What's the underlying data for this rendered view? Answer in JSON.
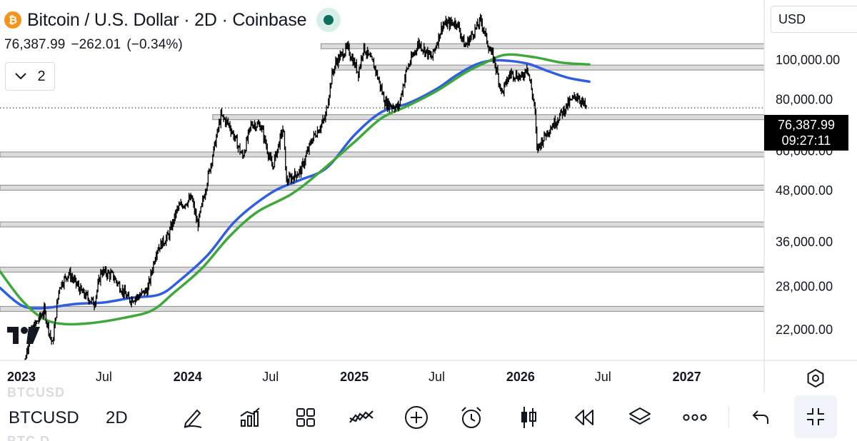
{
  "header": {
    "title": "Bitcoin / U.S. Dollar · 2D · Coinbase",
    "coin_glyph": "₿",
    "last_price": "76,387.99",
    "change": "−262.01",
    "change_pct": "(−0.34%)",
    "indicator_count": "2",
    "status_color": "#0b6e5a"
  },
  "currency_select": {
    "value": "USD"
  },
  "price_tag": {
    "price": "76,387.99",
    "countdown": "09:27:11"
  },
  "toolbar": {
    "symbol": "BTCUSD",
    "interval": "2D",
    "ghost_top": "BTCUSD",
    "ghost_bottom": "BTC D",
    "icons": [
      "pencil-icon",
      "chart-bars-icon",
      "grid-icon",
      "indicators-icon",
      "plus-circle-icon",
      "alarm-clock-icon",
      "candlestick-icon",
      "rewind-icon",
      "layers-icon",
      "more-icon",
      "undo-icon",
      "fullscreen-exit-icon"
    ]
  },
  "chart_data": {
    "type": "line",
    "scale": "log",
    "ylim": [
      18500,
      140000
    ],
    "x_range": [
      "2022-11-15",
      "2027-06-20"
    ],
    "y_ticks": [
      {
        "value": 22000,
        "label": "22,000.00"
      },
      {
        "value": 28000,
        "label": "28,000.00"
      },
      {
        "value": 36000,
        "label": "36,000.00"
      },
      {
        "value": 48000,
        "label": "48,000.00"
      },
      {
        "value": 60000,
        "label": "60,000.00"
      },
      {
        "value": 80000,
        "label": "80,000.00"
      },
      {
        "value": 100000,
        "label": "100,000.00"
      }
    ],
    "x_ticks": [
      {
        "date": "2023-01-01",
        "label": "2023",
        "bold": true
      },
      {
        "date": "2023-07-01",
        "label": "Jul",
        "bold": false
      },
      {
        "date": "2024-01-01",
        "label": "2024",
        "bold": true
      },
      {
        "date": "2024-07-01",
        "label": "Jul",
        "bold": false
      },
      {
        "date": "2025-01-01",
        "label": "2025",
        "bold": true
      },
      {
        "date": "2025-07-01",
        "label": "Jul",
        "bold": false
      },
      {
        "date": "2026-01-01",
        "label": "2026",
        "bold": true
      },
      {
        "date": "2026-07-01",
        "label": "Jul",
        "bold": false
      },
      {
        "date": "2027-01-01",
        "label": "2027",
        "bold": true
      }
    ],
    "current_price": 76387.99,
    "grid": false,
    "price_series": {
      "color": "#000000",
      "points": [
        [
          "2023-01-01",
          16600
        ],
        [
          "2023-01-20",
          21500
        ],
        [
          "2023-02-20",
          24500
        ],
        [
          "2023-03-10",
          20200
        ],
        [
          "2023-03-25",
          28000
        ],
        [
          "2023-04-15",
          30200
        ],
        [
          "2023-05-15",
          27000
        ],
        [
          "2023-06-10",
          25500
        ],
        [
          "2023-06-25",
          30500
        ],
        [
          "2023-07-20",
          29800
        ],
        [
          "2023-08-25",
          26000
        ],
        [
          "2023-09-15",
          26500
        ],
        [
          "2023-10-05",
          27500
        ],
        [
          "2023-10-25",
          34500
        ],
        [
          "2023-11-20",
          37300
        ],
        [
          "2023-12-10",
          43500
        ],
        [
          "2024-01-10",
          46000
        ],
        [
          "2024-01-23",
          39500
        ],
        [
          "2024-02-15",
          52000
        ],
        [
          "2024-03-14",
          73000
        ],
        [
          "2024-04-01",
          69500
        ],
        [
          "2024-05-01",
          58000
        ],
        [
          "2024-05-20",
          70000
        ],
        [
          "2024-06-10",
          69000
        ],
        [
          "2024-07-05",
          54500
        ],
        [
          "2024-07-29",
          68500
        ],
        [
          "2024-08-05",
          50500
        ],
        [
          "2024-09-06",
          53800
        ],
        [
          "2024-09-30",
          64000
        ],
        [
          "2024-10-29",
          72000
        ],
        [
          "2024-11-13",
          92000
        ],
        [
          "2024-11-22",
          99000
        ],
        [
          "2024-12-17",
          107000
        ],
        [
          "2025-01-10",
          93000
        ],
        [
          "2025-01-21",
          107500
        ],
        [
          "2025-02-15",
          96000
        ],
        [
          "2025-03-10",
          78500
        ],
        [
          "2025-04-08",
          76500
        ],
        [
          "2025-04-25",
          94000
        ],
        [
          "2025-05-22",
          110000
        ],
        [
          "2025-06-20",
          101000
        ],
        [
          "2025-07-14",
          122000
        ],
        [
          "2025-08-14",
          123500
        ],
        [
          "2025-09-01",
          108000
        ],
        [
          "2025-10-06",
          125000
        ],
        [
          "2025-10-25",
          106000
        ],
        [
          "2025-11-04",
          100000
        ],
        [
          "2025-11-21",
          83000
        ],
        [
          "2025-12-10",
          93000
        ],
        [
          "2026-01-05",
          90500
        ],
        [
          "2026-01-15",
          97000
        ],
        [
          "2026-02-01",
          77000
        ],
        [
          "2026-02-06",
          60500
        ],
        [
          "2026-03-01",
          67000
        ],
        [
          "2026-03-20",
          71000
        ],
        [
          "2026-04-15",
          78000
        ],
        [
          "2026-05-05",
          82000
        ],
        [
          "2026-05-25",
          76388
        ]
      ]
    },
    "series": [
      {
        "color": "#2f5fe0",
        "points": [
          [
            "2022-11-15",
            27800
          ],
          [
            "2023-01-01",
            25200
          ],
          [
            "2023-02-15",
            24800
          ],
          [
            "2023-05-01",
            25400
          ],
          [
            "2023-07-01",
            25600
          ],
          [
            "2023-09-01",
            26300
          ],
          [
            "2023-11-01",
            26800
          ],
          [
            "2023-12-15",
            29000
          ],
          [
            "2024-02-15",
            33500
          ],
          [
            "2024-04-15",
            40500
          ],
          [
            "2024-07-01",
            47300
          ],
          [
            "2024-09-01",
            50800
          ],
          [
            "2024-11-01",
            54500
          ],
          [
            "2025-01-01",
            65500
          ],
          [
            "2025-03-01",
            74500
          ],
          [
            "2025-05-01",
            78500
          ],
          [
            "2025-07-01",
            85000
          ],
          [
            "2025-08-15",
            92000
          ],
          [
            "2025-10-01",
            98000
          ],
          [
            "2025-11-15",
            99800
          ],
          [
            "2026-01-15",
            98000
          ],
          [
            "2026-03-01",
            94000
          ],
          [
            "2026-04-15",
            90500
          ],
          [
            "2026-06-01",
            88500
          ]
        ]
      },
      {
        "color": "#3fa83a",
        "points": [
          [
            "2022-11-15",
            30500
          ],
          [
            "2023-01-01",
            26000
          ],
          [
            "2023-02-15",
            23500
          ],
          [
            "2023-04-01",
            22700
          ],
          [
            "2023-06-01",
            22800
          ],
          [
            "2023-08-15",
            23500
          ],
          [
            "2023-10-15",
            24500
          ],
          [
            "2023-12-01",
            27000
          ],
          [
            "2024-02-01",
            31000
          ],
          [
            "2024-04-01",
            37000
          ],
          [
            "2024-06-01",
            42500
          ],
          [
            "2024-08-15",
            47000
          ],
          [
            "2024-10-15",
            53000
          ],
          [
            "2025-01-01",
            63000
          ],
          [
            "2025-03-01",
            72000
          ],
          [
            "2025-05-01",
            77500
          ],
          [
            "2025-07-01",
            84000
          ],
          [
            "2025-09-01",
            93000
          ],
          [
            "2025-10-20",
            99000
          ],
          [
            "2025-12-01",
            103000
          ],
          [
            "2026-02-01",
            101500
          ],
          [
            "2026-04-01",
            98500
          ],
          [
            "2026-06-01",
            97500
          ]
        ]
      }
    ],
    "horizontal_levels": [
      {
        "value": 108000,
        "start": "2024-10-20"
      },
      {
        "value": 95800,
        "start": "2024-11-20"
      },
      {
        "value": 72500,
        "start": "2024-02-25"
      },
      {
        "value": 58800,
        "start": "2022-11-15"
      },
      {
        "value": 48800,
        "start": "2022-11-15"
      },
      {
        "value": 39700,
        "start": "2022-11-15"
      },
      {
        "value": 30800,
        "start": "2022-11-15"
      },
      {
        "value": 24700,
        "start": "2022-11-15"
      }
    ]
  }
}
